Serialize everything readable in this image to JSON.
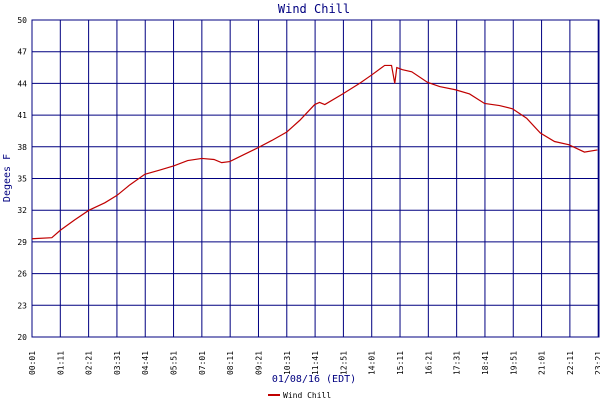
{
  "chart_data": {
    "type": "line",
    "title": "Wind Chill",
    "xlabel": "01/08/16 (EDT)",
    "ylabel": "Degees F",
    "x": [
      1,
      50,
      71,
      107,
      142,
      181,
      211,
      243,
      280,
      317,
      352,
      386,
      421,
      451,
      470,
      490,
      527,
      559,
      594,
      631,
      663,
      700,
      712,
      725,
      769,
      811,
      841,
      873,
      890,
      898,
      903,
      917,
      940,
      979,
      1009,
      1048,
      1083,
      1120,
      1157,
      1189,
      1224,
      1258,
      1293,
      1328,
      1367,
      1399
    ],
    "series": [
      {
        "name": "Wind Chill",
        "color": "#c00000",
        "values": [
          29.3,
          29.4,
          30.1,
          31.1,
          32.0,
          32.7,
          33.4,
          34.4,
          35.4,
          35.8,
          36.2,
          36.7,
          36.9,
          36.8,
          36.5,
          36.6,
          37.3,
          37.9,
          38.6,
          39.4,
          40.5,
          42.0,
          42.2,
          42.0,
          43.0,
          44.0,
          44.8,
          45.7,
          45.7,
          44.0,
          45.5,
          45.3,
          45.1,
          44.1,
          43.7,
          43.4,
          43.0,
          42.1,
          41.9,
          41.6,
          40.7,
          39.3,
          38.5,
          38.2,
          37.5,
          37.7
        ]
      }
    ],
    "xlim": [
      1,
      1403
    ],
    "xticks": [
      {
        "value": 1,
        "label": "00:01"
      },
      {
        "value": 71,
        "label": "01:11"
      },
      {
        "value": 141,
        "label": "02:21"
      },
      {
        "value": 211,
        "label": "03:31"
      },
      {
        "value": 281,
        "label": "04:41"
      },
      {
        "value": 351,
        "label": "05:51"
      },
      {
        "value": 421,
        "label": "07:01"
      },
      {
        "value": 491,
        "label": "08:11"
      },
      {
        "value": 561,
        "label": "09:21"
      },
      {
        "value": 631,
        "label": "10:31"
      },
      {
        "value": 701,
        "label": "11:41"
      },
      {
        "value": 771,
        "label": "12:51"
      },
      {
        "value": 841,
        "label": "14:01"
      },
      {
        "value": 911,
        "label": "15:11"
      },
      {
        "value": 981,
        "label": "16:21"
      },
      {
        "value": 1051,
        "label": "17:31"
      },
      {
        "value": 1121,
        "label": "18:41"
      },
      {
        "value": 1191,
        "label": "19:51"
      },
      {
        "value": 1261,
        "label": "21:01"
      },
      {
        "value": 1331,
        "label": "22:11"
      },
      {
        "value": 1401,
        "label": "23:21"
      }
    ],
    "ylim": [
      20,
      50
    ],
    "yticks": [
      20,
      23,
      26,
      29,
      32,
      35,
      38,
      41,
      44,
      47,
      50
    ],
    "grid": true,
    "grid_color": "#000080"
  }
}
